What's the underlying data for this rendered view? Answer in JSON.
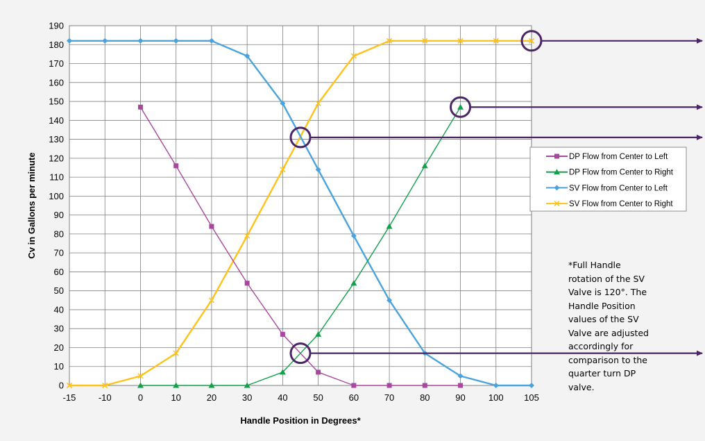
{
  "chart_data": {
    "type": "line",
    "title": "",
    "xlabel": "Handle Position in Degrees*",
    "ylabel": "Cv in Gallons per minute",
    "x": [
      -15,
      -10,
      0,
      10,
      20,
      30,
      40,
      50,
      60,
      70,
      80,
      90,
      100,
      105
    ],
    "xlim": [
      -15,
      105
    ],
    "ylim": [
      0,
      190
    ],
    "yticks": [
      0,
      10,
      20,
      30,
      40,
      50,
      60,
      70,
      80,
      90,
      100,
      110,
      120,
      130,
      140,
      150,
      160,
      170,
      180,
      190
    ],
    "grid": true,
    "legend_position": "right",
    "series": [
      {
        "name": "DP Flow from Center to Left",
        "color": "#a8479f",
        "marker": "square",
        "points": [
          [
            0,
            147
          ],
          [
            10,
            116
          ],
          [
            20,
            84
          ],
          [
            30,
            54
          ],
          [
            40,
            27
          ],
          [
            50,
            7
          ],
          [
            60,
            0
          ],
          [
            70,
            0
          ],
          [
            80,
            0
          ],
          [
            90,
            0
          ]
        ]
      },
      {
        "name": "DP Flow from Center to Right",
        "color": "#14a04a",
        "marker": "triangle",
        "points": [
          [
            0,
            0
          ],
          [
            10,
            0
          ],
          [
            20,
            0
          ],
          [
            30,
            0
          ],
          [
            40,
            7
          ],
          [
            50,
            27
          ],
          [
            60,
            54
          ],
          [
            70,
            84
          ],
          [
            80,
            116
          ],
          [
            90,
            147
          ]
        ]
      },
      {
        "name": "SV Flow from Center to Left",
        "color": "#4aa3dc",
        "marker": "diamond",
        "points": [
          [
            -15,
            182
          ],
          [
            -10,
            182
          ],
          [
            0,
            182
          ],
          [
            10,
            182
          ],
          [
            20,
            182
          ],
          [
            30,
            174
          ],
          [
            40,
            149
          ],
          [
            50,
            114
          ],
          [
            60,
            79
          ],
          [
            70,
            45
          ],
          [
            80,
            17
          ],
          [
            90,
            5
          ],
          [
            100,
            0
          ],
          [
            105,
            0
          ]
        ]
      },
      {
        "name": "SV Flow from Center to Right",
        "color": "#ffc21a",
        "marker": "x",
        "points": [
          [
            -15,
            0
          ],
          [
            -10,
            0
          ],
          [
            0,
            5
          ],
          [
            10,
            17
          ],
          [
            20,
            45
          ],
          [
            30,
            79
          ],
          [
            40,
            114
          ],
          [
            50,
            149
          ],
          [
            60,
            174
          ],
          [
            70,
            182
          ],
          [
            80,
            182
          ],
          [
            90,
            182
          ],
          [
            100,
            182
          ],
          [
            105,
            182
          ]
        ]
      }
    ],
    "annotations": [
      {
        "x": 105,
        "y": 182
      },
      {
        "x": 90,
        "y": 147
      },
      {
        "x": 45,
        "y": 131
      },
      {
        "x": 45,
        "y": 17
      }
    ],
    "annotation_color": "#4b2566"
  },
  "note": {
    "lines": [
      "*Full Handle",
      "rotation of the SV",
      "Valve is 120°. The",
      "Handle Position",
      "values of the SV",
      "Valve are adjusted",
      "accordingly for",
      "comparison to the",
      "quarter turn DP",
      "valve."
    ]
  }
}
